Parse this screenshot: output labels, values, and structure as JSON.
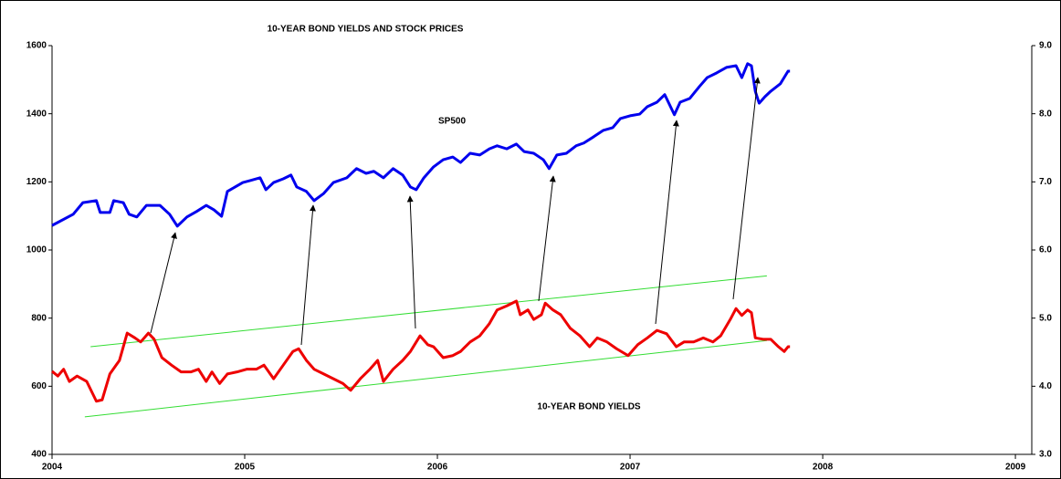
{
  "chart_data": {
    "type": "line",
    "title": "10-YEAR BOND YIELDS AND STOCK PRICES",
    "annotations": [
      "SP500",
      "10-YEAR BOND YIELDS"
    ],
    "xlim": [
      2004,
      2009.085
    ],
    "xticks": [
      2004,
      2005,
      2006,
      2007,
      2008,
      2009
    ],
    "ylim": [
      400,
      1600
    ],
    "yticks": [
      400,
      600,
      800,
      1000,
      1200,
      1400,
      1600
    ],
    "y2lim": [
      3,
      9
    ],
    "y2ticks": [
      {
        "value": 3,
        "label": "3.0"
      },
      {
        "value": 4,
        "label": "4.0"
      },
      {
        "value": 5,
        "label": "5.0"
      },
      {
        "value": 6,
        "label": "6.0"
      },
      {
        "value": 7,
        "label": "7.0"
      },
      {
        "value": 8,
        "label": "8.0"
      },
      {
        "value": 9,
        "label": "9.0"
      }
    ],
    "series": [
      {
        "color": "#0000ee",
        "x": [
          2004.0,
          2004.11,
          2004.16,
          2004.23,
          2004.25,
          2004.3,
          2004.32,
          2004.37,
          2004.4,
          2004.44,
          2004.49,
          2004.56,
          2004.61,
          2004.65,
          2004.7,
          2004.75,
          2004.8,
          2004.84,
          2004.88,
          2004.91,
          2004.95,
          2004.99,
          2005.03,
          2005.08,
          2005.11,
          2005.15,
          2005.2,
          2005.24,
          2005.27,
          2005.32,
          2005.36,
          2005.41,
          2005.46,
          2005.53,
          2005.58,
          2005.63,
          2005.67,
          2005.72,
          2005.77,
          2005.82,
          2005.86,
          2005.89,
          2005.93,
          2005.98,
          2006.03,
          2006.08,
          2006.12,
          2006.17,
          2006.22,
          2006.27,
          2006.31,
          2006.36,
          2006.41,
          2006.45,
          2006.5,
          2006.55,
          2006.58,
          2006.62,
          2006.67,
          2006.72,
          2006.76,
          2006.81,
          2006.86,
          2006.91,
          2006.95,
          2007.0,
          2007.05,
          2007.09,
          2007.14,
          2007.18,
          2007.23,
          2007.26,
          2007.31,
          2007.36,
          2007.4,
          2007.45,
          2007.5,
          2007.55,
          2007.58,
          2007.61,
          2007.63,
          2007.65,
          2007.67,
          2007.7,
          2007.73,
          2007.78,
          2007.82,
          2007.83
        ],
        "values": [
          1072,
          1105,
          1139,
          1145,
          1110,
          1110,
          1145,
          1139,
          1105,
          1097,
          1131,
          1131,
          1105,
          1070,
          1097,
          1113,
          1131,
          1118,
          1099,
          1172,
          1185,
          1198,
          1204,
          1212,
          1177,
          1198,
          1209,
          1220,
          1185,
          1172,
          1145,
          1166,
          1198,
          1212,
          1239,
          1225,
          1231,
          1212,
          1239,
          1220,
          1185,
          1177,
          1212,
          1244,
          1265,
          1273,
          1257,
          1284,
          1279,
          1297,
          1306,
          1297,
          1311,
          1289,
          1284,
          1265,
          1239,
          1279,
          1284,
          1306,
          1314,
          1332,
          1351,
          1359,
          1386,
          1394,
          1399,
          1421,
          1434,
          1456,
          1397,
          1434,
          1445,
          1480,
          1506,
          1520,
          1536,
          1541,
          1506,
          1547,
          1541,
          1466,
          1431,
          1450,
          1466,
          1488,
          1525,
          1525
        ]
      },
      {
        "color": "#ee0000",
        "axis": "y2",
        "x": [
          2004.0,
          2004.03,
          2004.06,
          2004.09,
          2004.13,
          2004.18,
          2004.23,
          2004.26,
          2004.3,
          2004.35,
          2004.39,
          2004.43,
          2004.46,
          2004.5,
          2004.53,
          2004.57,
          2004.62,
          2004.67,
          2004.72,
          2004.76,
          2004.8,
          2004.83,
          2004.87,
          2004.91,
          2004.96,
          2005.01,
          2005.06,
          2005.1,
          2005.15,
          2005.2,
          2005.25,
          2005.28,
          2005.32,
          2005.36,
          2005.41,
          2005.46,
          2005.51,
          2005.55,
          2005.6,
          2005.65,
          2005.69,
          2005.72,
          2005.77,
          2005.82,
          2005.86,
          2005.91,
          2005.95,
          2005.98,
          2006.03,
          2006.08,
          2006.12,
          2006.17,
          2006.22,
          2006.27,
          2006.31,
          2006.36,
          2006.41,
          2006.43,
          2006.47,
          2006.5,
          2006.54,
          2006.56,
          2006.6,
          2006.64,
          2006.69,
          2006.74,
          2006.79,
          2006.83,
          2006.88,
          2006.93,
          2006.99,
          2007.04,
          2007.09,
          2007.14,
          2007.19,
          2007.24,
          2007.28,
          2007.33,
          2007.38,
          2007.43,
          2007.47,
          2007.52,
          2007.55,
          2007.58,
          2007.61,
          2007.63,
          2007.65,
          2007.69,
          2007.73,
          2007.77,
          2007.8,
          2007.82,
          2007.83
        ],
        "values": [
          4.22,
          4.15,
          4.25,
          4.07,
          4.15,
          4.07,
          3.78,
          3.8,
          4.18,
          4.38,
          4.78,
          4.71,
          4.65,
          4.78,
          4.69,
          4.42,
          4.31,
          4.21,
          4.21,
          4.25,
          4.07,
          4.21,
          4.04,
          4.18,
          4.21,
          4.25,
          4.25,
          4.31,
          4.11,
          4.31,
          4.51,
          4.55,
          4.38,
          4.25,
          4.18,
          4.11,
          4.04,
          3.94,
          4.11,
          4.25,
          4.38,
          4.07,
          4.25,
          4.38,
          4.51,
          4.74,
          4.61,
          4.58,
          4.42,
          4.45,
          4.51,
          4.65,
          4.74,
          4.92,
          5.12,
          5.18,
          5.25,
          5.05,
          5.12,
          4.98,
          5.05,
          5.22,
          5.12,
          5.05,
          4.85,
          4.74,
          4.58,
          4.71,
          4.65,
          4.55,
          4.45,
          4.61,
          4.71,
          4.82,
          4.77,
          4.58,
          4.65,
          4.65,
          4.71,
          4.65,
          4.74,
          4.98,
          5.14,
          5.04,
          5.12,
          5.08,
          4.71,
          4.69,
          4.69,
          4.58,
          4.51,
          4.58,
          4.58
        ]
      }
    ],
    "trend_lines": [
      {
        "color": "#33dd33",
        "axis": "y2",
        "x": [
          2004.2,
          2007.71
        ],
        "values": [
          4.58,
          5.62
        ]
      },
      {
        "color": "#33dd33",
        "axis": "y2",
        "x": [
          2004.17,
          2007.71
        ],
        "values": [
          3.55,
          4.67
        ]
      }
    ]
  }
}
